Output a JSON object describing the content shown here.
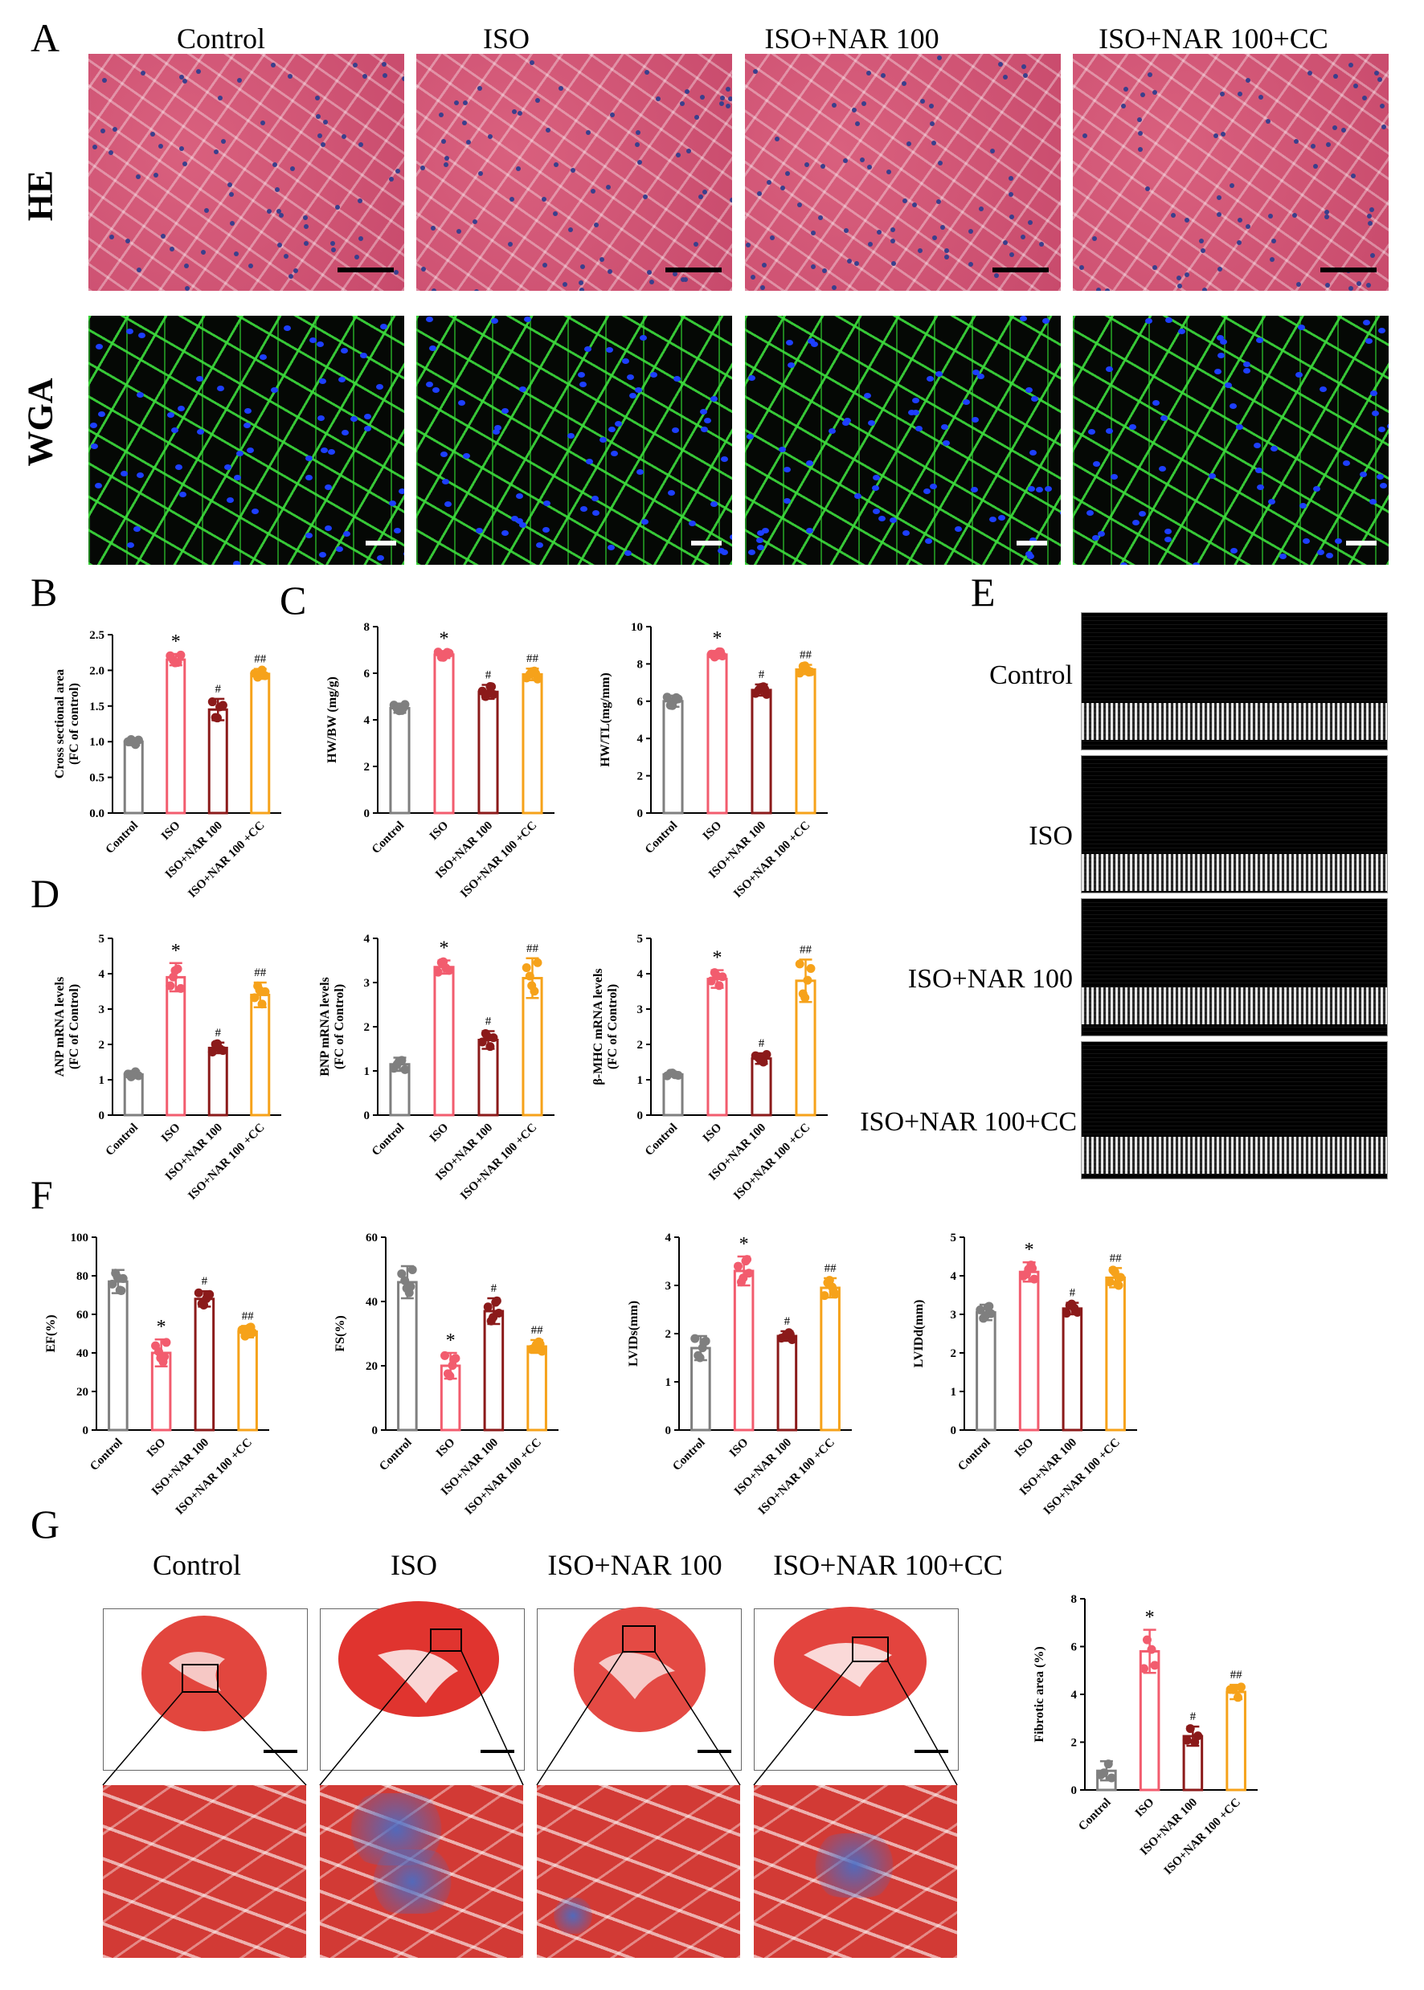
{
  "panels": {
    "A": "A",
    "B": "B",
    "C": "C",
    "D": "D",
    "E": "E",
    "F": "F",
    "G": "G"
  },
  "groups": [
    "Control",
    "ISO",
    "ISO+NAR 100",
    "ISO+NAR 100+CC"
  ],
  "axis_groups": [
    "Control",
    "ISO",
    "ISO+NAR 100",
    "ISO+NAR 100 +CC"
  ],
  "row_labels": {
    "he": "HE",
    "wga": "WGA"
  },
  "echo_labels": [
    "Control",
    "ISO",
    "ISO+NAR 100",
    "ISO+NAR 100+CC"
  ],
  "colors": {
    "control": "#7f7f7f",
    "iso": "#f25c6e",
    "nar": "#8b1a1a",
    "cc": "#f6a21a"
  },
  "chart_data": [
    {
      "id": "B",
      "type": "bar",
      "ylabel": [
        "Cross sectional area",
        "(FC of control)"
      ],
      "ylim": [
        0,
        2.5
      ],
      "ticks": [
        0.0,
        0.5,
        1.0,
        1.5,
        2.0,
        2.5
      ],
      "tick_labels": [
        "0.0",
        "0.5",
        "1.0",
        "1.5",
        "2.0",
        "2.5"
      ],
      "values": [
        1.0,
        2.15,
        1.45,
        1.95
      ],
      "errors": [
        0.05,
        0.08,
        0.15,
        0.07
      ],
      "marks": [
        "",
        "*",
        "#",
        "##"
      ]
    },
    {
      "id": "C1",
      "type": "bar",
      "ylabel": [
        "HW/BW (mg/g)"
      ],
      "ylim": [
        0,
        8
      ],
      "ticks": [
        0,
        2,
        4,
        6,
        8
      ],
      "tick_labels": [
        "0",
        "2",
        "4",
        "6",
        "8"
      ],
      "values": [
        4.5,
        6.8,
        5.2,
        5.95
      ],
      "errors": [
        0.2,
        0.15,
        0.3,
        0.25
      ],
      "marks": [
        "",
        "*",
        "#",
        "##"
      ]
    },
    {
      "id": "C2",
      "type": "bar",
      "ylabel": [
        "HW/TL(mg/mm)"
      ],
      "ylim": [
        0,
        10
      ],
      "ticks": [
        0,
        2,
        4,
        6,
        8,
        10
      ],
      "tick_labels": [
        "0",
        "2",
        "4",
        "6",
        "8",
        "10"
      ],
      "values": [
        6.0,
        8.5,
        6.6,
        7.7
      ],
      "errors": [
        0.3,
        0.2,
        0.3,
        0.25
      ],
      "marks": [
        "",
        "*",
        "#",
        "##"
      ]
    },
    {
      "id": "D1",
      "type": "bar",
      "ylabel": [
        "ANP  mRNA levels",
        "(FC of Control)"
      ],
      "ylim": [
        0,
        5
      ],
      "ticks": [
        0,
        1,
        2,
        3,
        4,
        5
      ],
      "tick_labels": [
        "0",
        "1",
        "2",
        "3",
        "4",
        "5"
      ],
      "values": [
        1.15,
        3.9,
        1.9,
        3.4
      ],
      "errors": [
        0.1,
        0.4,
        0.15,
        0.35
      ],
      "marks": [
        "",
        "*",
        "#",
        "##"
      ]
    },
    {
      "id": "D2",
      "type": "bar",
      "ylabel": [
        "BNP  mRNA levels",
        "(FC of Control)"
      ],
      "ylim": [
        0,
        4
      ],
      "ticks": [
        0,
        1,
        2,
        3,
        4
      ],
      "tick_labels": [
        "0",
        "1",
        "2",
        "3",
        "4"
      ],
      "values": [
        1.15,
        3.35,
        1.7,
        3.1
      ],
      "errors": [
        0.15,
        0.15,
        0.2,
        0.45
      ],
      "marks": [
        "",
        "*",
        "#",
        "##"
      ]
    },
    {
      "id": "D3",
      "type": "bar",
      "ylabel": [
        "β-MHC mRNA levels",
        "(FC of Control)"
      ],
      "ylim": [
        0,
        5
      ],
      "ticks": [
        0,
        1,
        2,
        3,
        4,
        5
      ],
      "tick_labels": [
        "0",
        "1",
        "2",
        "3",
        "4",
        "5"
      ],
      "values": [
        1.15,
        3.85,
        1.6,
        3.8
      ],
      "errors": [
        0.05,
        0.25,
        0.15,
        0.6
      ],
      "marks": [
        "",
        "*",
        "#",
        "##"
      ]
    },
    {
      "id": "F1",
      "type": "bar",
      "ylabel": [
        "EF(%)"
      ],
      "ylim": [
        0,
        100
      ],
      "ticks": [
        0,
        20,
        40,
        60,
        80,
        100
      ],
      "tick_labels": [
        "0",
        "20",
        "40",
        "60",
        "80",
        "100"
      ],
      "values": [
        77,
        40,
        68,
        51
      ],
      "errors": [
        6,
        7,
        4,
        3
      ],
      "marks": [
        "",
        "*",
        "#",
        "##"
      ]
    },
    {
      "id": "F2",
      "type": "bar",
      "ylabel": [
        "FS(%)"
      ],
      "ylim": [
        0,
        60
      ],
      "ticks": [
        0,
        20,
        40,
        60
      ],
      "tick_labels": [
        "0",
        "20",
        "40",
        "60"
      ],
      "values": [
        46,
        20,
        37,
        26
      ],
      "errors": [
        5,
        4,
        4,
        2
      ],
      "marks": [
        "",
        "*",
        "#",
        "##"
      ]
    },
    {
      "id": "F3",
      "type": "bar",
      "ylabel": [
        "LVIDs(mm)"
      ],
      "ylim": [
        0,
        4
      ],
      "ticks": [
        0,
        1,
        2,
        3,
        4
      ],
      "tick_labels": [
        "0",
        "1",
        "2",
        "3",
        "4"
      ],
      "values": [
        1.7,
        3.3,
        1.95,
        2.95
      ],
      "errors": [
        0.25,
        0.3,
        0.1,
        0.2
      ],
      "marks": [
        "",
        "*",
        "#",
        "##"
      ]
    },
    {
      "id": "F4",
      "type": "bar",
      "ylabel": [
        "LVIDd(mm)"
      ],
      "ylim": [
        0,
        5
      ],
      "ticks": [
        0,
        1,
        2,
        3,
        4,
        5
      ],
      "tick_labels": [
        "0",
        "1",
        "2",
        "3",
        "4",
        "5"
      ],
      "values": [
        3.05,
        4.1,
        3.15,
        3.95
      ],
      "errors": [
        0.2,
        0.25,
        0.15,
        0.25
      ],
      "marks": [
        "",
        "*",
        "#",
        "##"
      ]
    },
    {
      "id": "G",
      "type": "bar",
      "ylabel": [
        "Fibrotic area (%)"
      ],
      "ylim": [
        0,
        8
      ],
      "ticks": [
        0,
        2,
        4,
        6,
        8
      ],
      "tick_labels": [
        "0",
        "2",
        "4",
        "6",
        "8"
      ],
      "values": [
        0.8,
        5.8,
        2.25,
        4.1
      ],
      "errors": [
        0.4,
        0.9,
        0.4,
        0.3
      ],
      "marks": [
        "",
        "*",
        "#",
        "##"
      ]
    }
  ]
}
